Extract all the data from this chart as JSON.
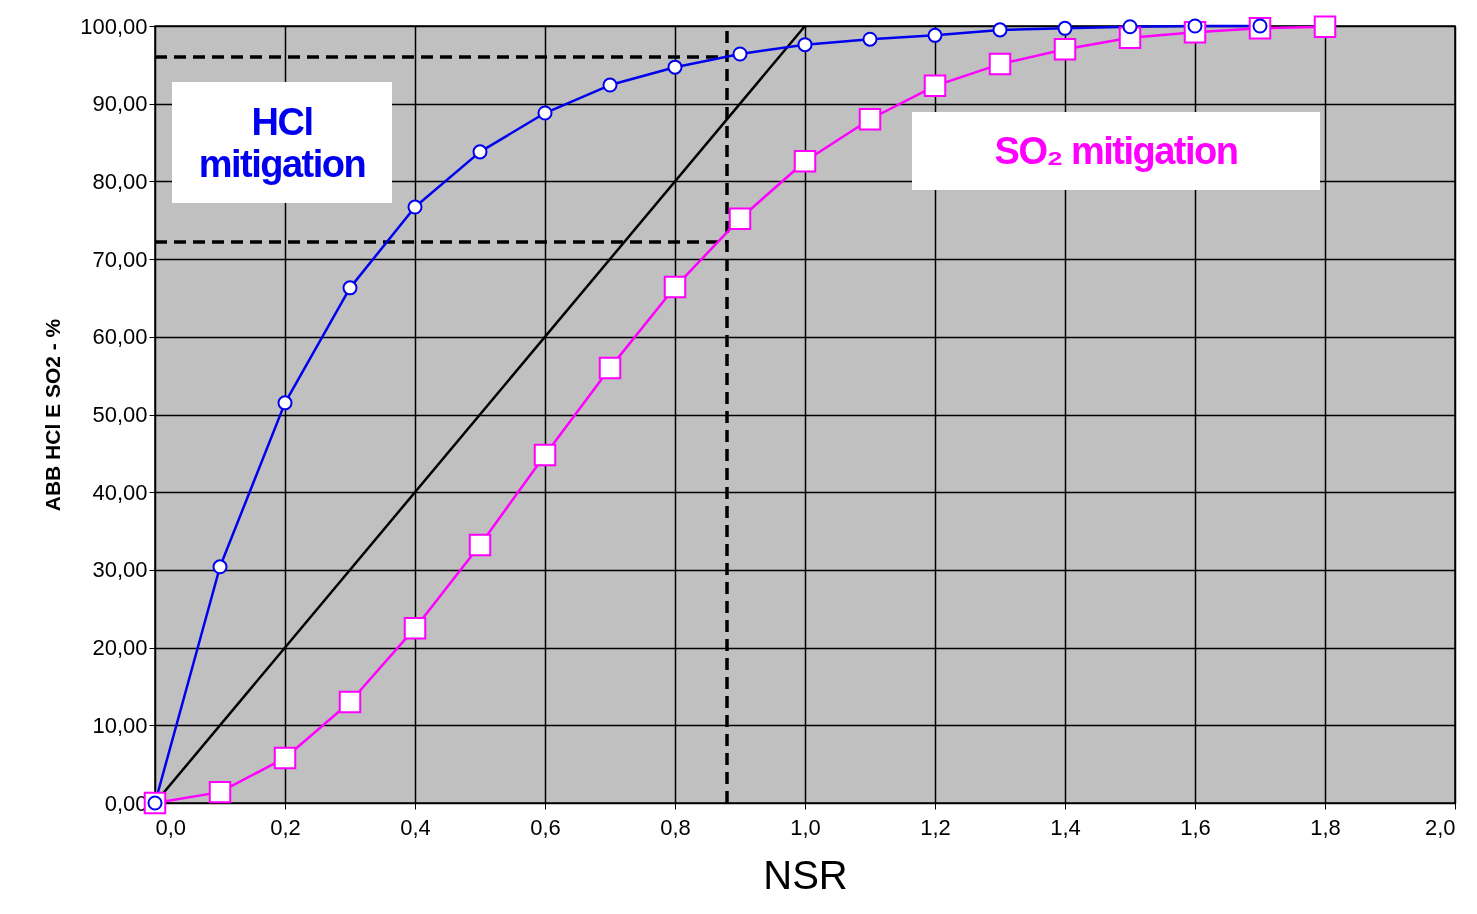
{
  "chart_data": {
    "type": "line",
    "xlabel": "NSR",
    "ylabel": "ABB HCl E SO2 - %",
    "xlim": [
      0,
      2
    ],
    "ylim": [
      0,
      100
    ],
    "xticks": [
      {
        "value": 0,
        "label": "0,0"
      },
      {
        "value": 0.2,
        "label": "0,2"
      },
      {
        "value": 0.4,
        "label": "0,4"
      },
      {
        "value": 0.6,
        "label": "0,6"
      },
      {
        "value": 0.8,
        "label": "0,8"
      },
      {
        "value": 1,
        "label": "1,0"
      },
      {
        "value": 1.2,
        "label": "1,2"
      },
      {
        "value": 1.4,
        "label": "1,4"
      },
      {
        "value": 1.6,
        "label": "1,6"
      },
      {
        "value": 1.8,
        "label": "1,8"
      },
      {
        "value": 2,
        "label": "2,0"
      }
    ],
    "yticks": [
      {
        "value": 0,
        "label": "0,00"
      },
      {
        "value": 10,
        "label": "10,00"
      },
      {
        "value": 20,
        "label": "20,00"
      },
      {
        "value": 30,
        "label": "30,00"
      },
      {
        "value": 40,
        "label": "40,00"
      },
      {
        "value": 50,
        "label": "50,00"
      },
      {
        "value": 60,
        "label": "60,00"
      },
      {
        "value": 70,
        "label": "70,00"
      },
      {
        "value": 80,
        "label": "80,00"
      },
      {
        "value": 90,
        "label": "90,00"
      },
      {
        "value": 100,
        "label": "100,00"
      }
    ],
    "grid": true,
    "legend": false,
    "series": [
      {
        "name": "HCl mitigation",
        "color": "#0000ee",
        "marker": "circle",
        "x": [
          0,
          0.1,
          0.2,
          0.3,
          0.4,
          0.5,
          0.6,
          0.7,
          0.8,
          0.9,
          1.0,
          1.1,
          1.2,
          1.3,
          1.4,
          1.5,
          1.6,
          1.7
        ],
        "values": [
          0,
          30.4,
          51.5,
          66.3,
          76.7,
          83.8,
          88.8,
          92.4,
          94.7,
          96.4,
          97.6,
          98.3,
          98.8,
          99.5,
          99.7,
          99.9,
          100,
          100
        ]
      },
      {
        "name": "SO₂ mitigation",
        "color": "#ff00ff",
        "marker": "square",
        "x": [
          0,
          0.1,
          0.2,
          0.3,
          0.4,
          0.5,
          0.6,
          0.7,
          0.8,
          0.9,
          1.0,
          1.1,
          1.2,
          1.3,
          1.4,
          1.5,
          1.6,
          1.7,
          1.8
        ],
        "values": [
          0,
          1.4,
          5.8,
          13,
          22.5,
          33.2,
          44.8,
          56,
          66.4,
          75.2,
          82.6,
          88,
          92.3,
          95.1,
          97,
          98.5,
          99.2,
          99.7,
          99.9
        ]
      },
      {
        "color": "#000000",
        "marker": "none",
        "line_style": "solid",
        "x": [
          0,
          1.0
        ],
        "values": [
          0,
          100
        ]
      },
      {
        "color": "#000000",
        "marker": "none",
        "line_style": "dashed",
        "x": [
          0,
          0.88
        ],
        "values": [
          96,
          96
        ]
      },
      {
        "color": "#000000",
        "marker": "none",
        "line_style": "dashed",
        "x": [
          0,
          0.88
        ],
        "values": [
          72.2,
          72.2
        ]
      },
      {
        "color": "#000000",
        "marker": "none",
        "line_style": "dashed",
        "x": [
          0.88,
          0.88
        ],
        "values": [
          0,
          100
        ]
      }
    ]
  }
}
